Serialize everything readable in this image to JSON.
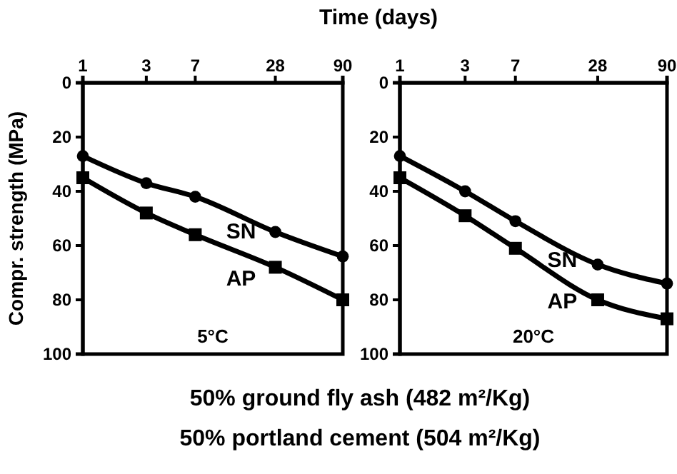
{
  "chart_data": [
    {
      "type": "line",
      "title": "50% ground fly ash (482 m²/Kg)",
      "subtitle": "50% portland cement (504 m²/Kg)",
      "xlabel": "Time (days)",
      "ylabel": "Compr. strength (MPa)",
      "log": "x",
      "x": [
        1,
        3,
        7,
        28,
        90
      ],
      "xlim": [
        1,
        90
      ],
      "xticks": [
        1,
        3,
        7,
        28,
        90
      ],
      "ylim": [
        100,
        0
      ],
      "yticks": [
        0,
        20,
        40,
        60,
        80,
        100
      ],
      "grid": false,
      "line_style": "solid",
      "annotations": [
        "5°C"
      ],
      "series": [
        {
          "name": "SN",
          "color": "#000000",
          "marker": "circle",
          "values": [
            27,
            37,
            42,
            55,
            64
          ]
        },
        {
          "name": "AP",
          "color": "#000000",
          "marker": "square",
          "values": [
            35,
            48,
            56,
            68,
            80
          ]
        }
      ]
    },
    {
      "type": "line",
      "log": "x",
      "x": [
        1,
        3,
        7,
        28,
        90
      ],
      "xlim": [
        1,
        90
      ],
      "xticks": [
        1,
        3,
        7,
        28,
        90
      ],
      "ylim": [
        100,
        0
      ],
      "yticks": [
        0,
        20,
        40,
        60,
        80,
        100
      ],
      "grid": false,
      "line_style": "solid",
      "annotations": [
        "20°C"
      ],
      "series": [
        {
          "name": "SN",
          "color": "#000000",
          "marker": "circle",
          "values": [
            27,
            40,
            51,
            67,
            74
          ]
        },
        {
          "name": "AP",
          "color": "#000000",
          "marker": "square",
          "values": [
            35,
            49,
            61,
            80,
            87
          ]
        }
      ]
    }
  ]
}
